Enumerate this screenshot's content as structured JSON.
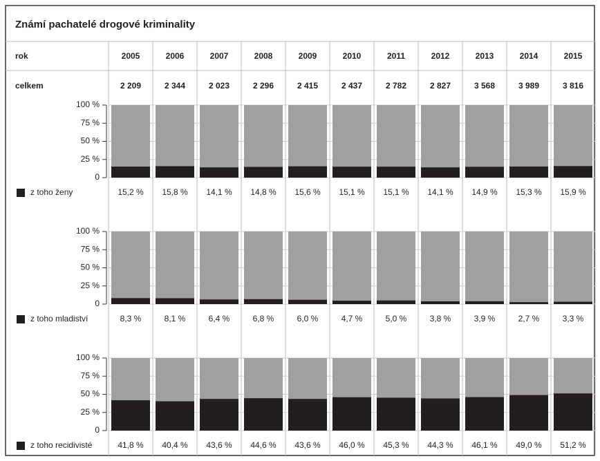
{
  "title": "Známí pachatelé drogové kriminality",
  "table": {
    "header": "rok",
    "years": [
      "2005",
      "2006",
      "2007",
      "2008",
      "2009",
      "2010",
      "2011",
      "2012",
      "2013",
      "2014",
      "2015"
    ],
    "total_label": "celkem",
    "totals": [
      "2 209",
      "2 344",
      "2 023",
      "2 296",
      "2 415",
      "2 437",
      "2 782",
      "2 827",
      "3 568",
      "3 989",
      "3 816"
    ]
  },
  "chart_data": [
    {
      "type": "bar",
      "ylim": [
        0,
        100
      ],
      "yticks": [
        0,
        {
          "value": 25,
          "label": "25 %"
        },
        {
          "value": 50,
          "label": "50 %"
        },
        {
          "value": 75,
          "label": "75 %"
        },
        {
          "value": 100,
          "label": "100 %"
        }
      ],
      "grid": true,
      "background_color": "#a0a0a0",
      "series": [
        {
          "name": "z toho ženy",
          "color": "#231f20",
          "values": [
            15.2,
            15.8,
            14.1,
            14.8,
            15.6,
            15.1,
            15.1,
            14.1,
            14.9,
            15.3,
            15.9
          ],
          "value_labels": [
            "15,2 %",
            "15,8 %",
            "14,1 %",
            "14,8 %",
            "15,6 %",
            "15,1 %",
            "15,1 %",
            "14,1 %",
            "14,9 %",
            "15,3 %",
            "15,9 %"
          ]
        }
      ]
    },
    {
      "type": "bar",
      "ylim": [
        0,
        100
      ],
      "yticks": [
        0,
        {
          "value": 25,
          "label": "25 %"
        },
        {
          "value": 50,
          "label": "50 %"
        },
        {
          "value": 75,
          "label": "75 %"
        },
        {
          "value": 100,
          "label": "100 %"
        }
      ],
      "grid": true,
      "background_color": "#a0a0a0",
      "series": [
        {
          "name": "z toho mladiství",
          "color": "#231f20",
          "values": [
            8.3,
            8.1,
            6.4,
            6.8,
            6.0,
            4.7,
            5.0,
            3.8,
            3.9,
            2.7,
            3.3
          ],
          "value_labels": [
            "8,3 %",
            "8,1 %",
            "6,4 %",
            "6,8 %",
            "6,0 %",
            "4,7 %",
            "5,0 %",
            "3,8 %",
            "3,9 %",
            "2,7 %",
            "3,3 %"
          ]
        }
      ]
    },
    {
      "type": "bar",
      "ylim": [
        0,
        100
      ],
      "yticks": [
        0,
        {
          "value": 25,
          "label": "25 %"
        },
        {
          "value": 50,
          "label": "50 %"
        },
        {
          "value": 75,
          "label": "75 %"
        },
        {
          "value": 100,
          "label": "100 %"
        }
      ],
      "grid": true,
      "background_color": "#a0a0a0",
      "series": [
        {
          "name": "z toho recidivisté",
          "color": "#231f20",
          "values": [
            41.8,
            40.4,
            43.6,
            44.6,
            43.6,
            46.0,
            45.3,
            44.3,
            46.1,
            49.0,
            51.2
          ],
          "value_labels": [
            "41,8 %",
            "40,4 %",
            "43,6 %",
            "44,6 %",
            "43,6 %",
            "46,0 %",
            "45,3 %",
            "44,3 %",
            "46,1 %",
            "49,0 %",
            "51,2 %"
          ]
        }
      ]
    }
  ]
}
